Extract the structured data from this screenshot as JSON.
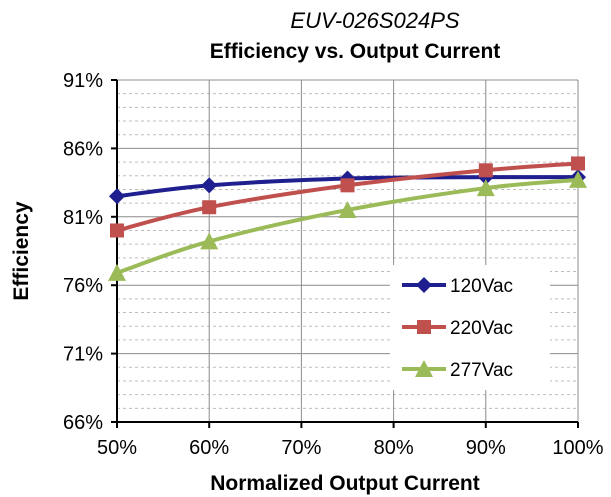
{
  "chart_data": {
    "type": "line",
    "subtitle": "EUV-026S024PS",
    "title": "Efficiency vs. Output Current",
    "xlabel": "Normalized Output Current",
    "ylabel": "Efficiency",
    "x": [
      50,
      60,
      75,
      90,
      100
    ],
    "xlim": [
      50,
      100
    ],
    "ylim": [
      66,
      91
    ],
    "x_ticks": [
      "50%",
      "60%",
      "70%",
      "80%",
      "90%",
      "100%"
    ],
    "y_ticks": [
      "66%",
      "71%",
      "76%",
      "81%",
      "86%",
      "91%"
    ],
    "grid": true,
    "legend_position": "lower-right",
    "series": [
      {
        "name": "120Vac",
        "marker": "diamond",
        "color": "#1f1f8f",
        "values": [
          82.5,
          83.3,
          83.8,
          83.9,
          83.9
        ]
      },
      {
        "name": "220Vac",
        "marker": "square",
        "color": "#c0504d",
        "values": [
          80.0,
          81.7,
          83.3,
          84.4,
          84.9
        ]
      },
      {
        "name": "277Vac",
        "marker": "triangle",
        "color": "#9bbb59",
        "values": [
          76.9,
          79.2,
          81.5,
          83.1,
          83.7
        ]
      }
    ]
  }
}
